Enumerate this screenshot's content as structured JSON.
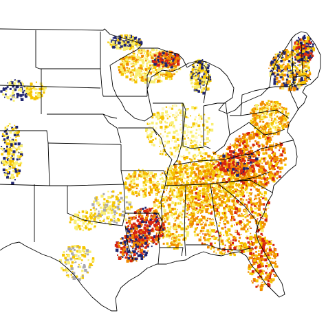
{
  "map": {
    "legend_colors": {
      "very_low": "#ffffff",
      "low": "#f9ef72",
      "moderate": "#f5c400",
      "high": "#f08a00",
      "very_high": "#d62410",
      "extreme": "#1f2470",
      "gray": "#a8a8b0"
    },
    "border_color": "#000000"
  }
}
